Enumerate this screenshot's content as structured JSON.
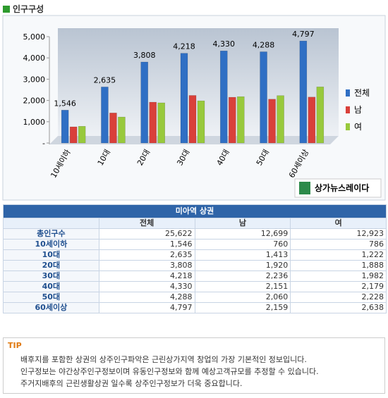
{
  "header": {
    "title": "인구구성"
  },
  "chart_data": {
    "type": "bar",
    "categories": [
      "10세이하",
      "10대",
      "20대",
      "30대",
      "40대",
      "50대",
      "60세이상"
    ],
    "series": [
      {
        "name": "전체",
        "color": "#2f6fc4",
        "values": [
          1546,
          2635,
          3808,
          4218,
          4330,
          4288,
          4797
        ],
        "value_labels": [
          "1,546",
          "2,635",
          "3,808",
          "4,218",
          "4,330",
          "4,288",
          "4,797"
        ]
      },
      {
        "name": "남",
        "color": "#d9403a",
        "values": [
          760,
          1413,
          1920,
          2236,
          2151,
          2060,
          2159
        ]
      },
      {
        "name": "여",
        "color": "#98c93c",
        "values": [
          786,
          1222,
          1888,
          1982,
          2179,
          2228,
          2638
        ]
      }
    ],
    "ylim": [
      0,
      5000
    ],
    "yticks": [
      {
        "value": 0,
        "label": "-"
      },
      {
        "value": 1000,
        "label": "1,000"
      },
      {
        "value": 2000,
        "label": "2,000"
      },
      {
        "value": 3000,
        "label": "3,000"
      },
      {
        "value": 4000,
        "label": "4,000"
      },
      {
        "value": 5000,
        "label": "5,000"
      }
    ],
    "grid": false,
    "legend": "right"
  },
  "logo": {
    "text": "상가뉴스레이다"
  },
  "table": {
    "title": "미아역 상권",
    "columns": [
      "전체",
      "남",
      "여"
    ],
    "rows": [
      [
        "총인구수",
        "25,622",
        "12,699",
        "12,923"
      ],
      [
        "10세이하",
        "1,546",
        "760",
        "786"
      ],
      [
        "10대",
        "2,635",
        "1,413",
        "1,222"
      ],
      [
        "20대",
        "3,808",
        "1,920",
        "1,888"
      ],
      [
        "30대",
        "4,218",
        "2,236",
        "1,982"
      ],
      [
        "40대",
        "4,330",
        "2,151",
        "2,179"
      ],
      [
        "50대",
        "4,288",
        "2,060",
        "2,228"
      ],
      [
        "60세이상",
        "4,797",
        "2,159",
        "2,638"
      ]
    ]
  },
  "tip": {
    "label": "TIP",
    "lines": [
      "배후지를 포함한 상권의 상주인구파악은 근린상가지역 창업의 가장 기본적인 정보입니다.",
      "인구정보는 야간상주인구정보이며 유동인구정보와 함께 예상고객규모를 추정할 수 있습니다.",
      "주거지배후의 근린생활상권 일수록 상주인구정보가 더욱 중요합니다."
    ]
  }
}
